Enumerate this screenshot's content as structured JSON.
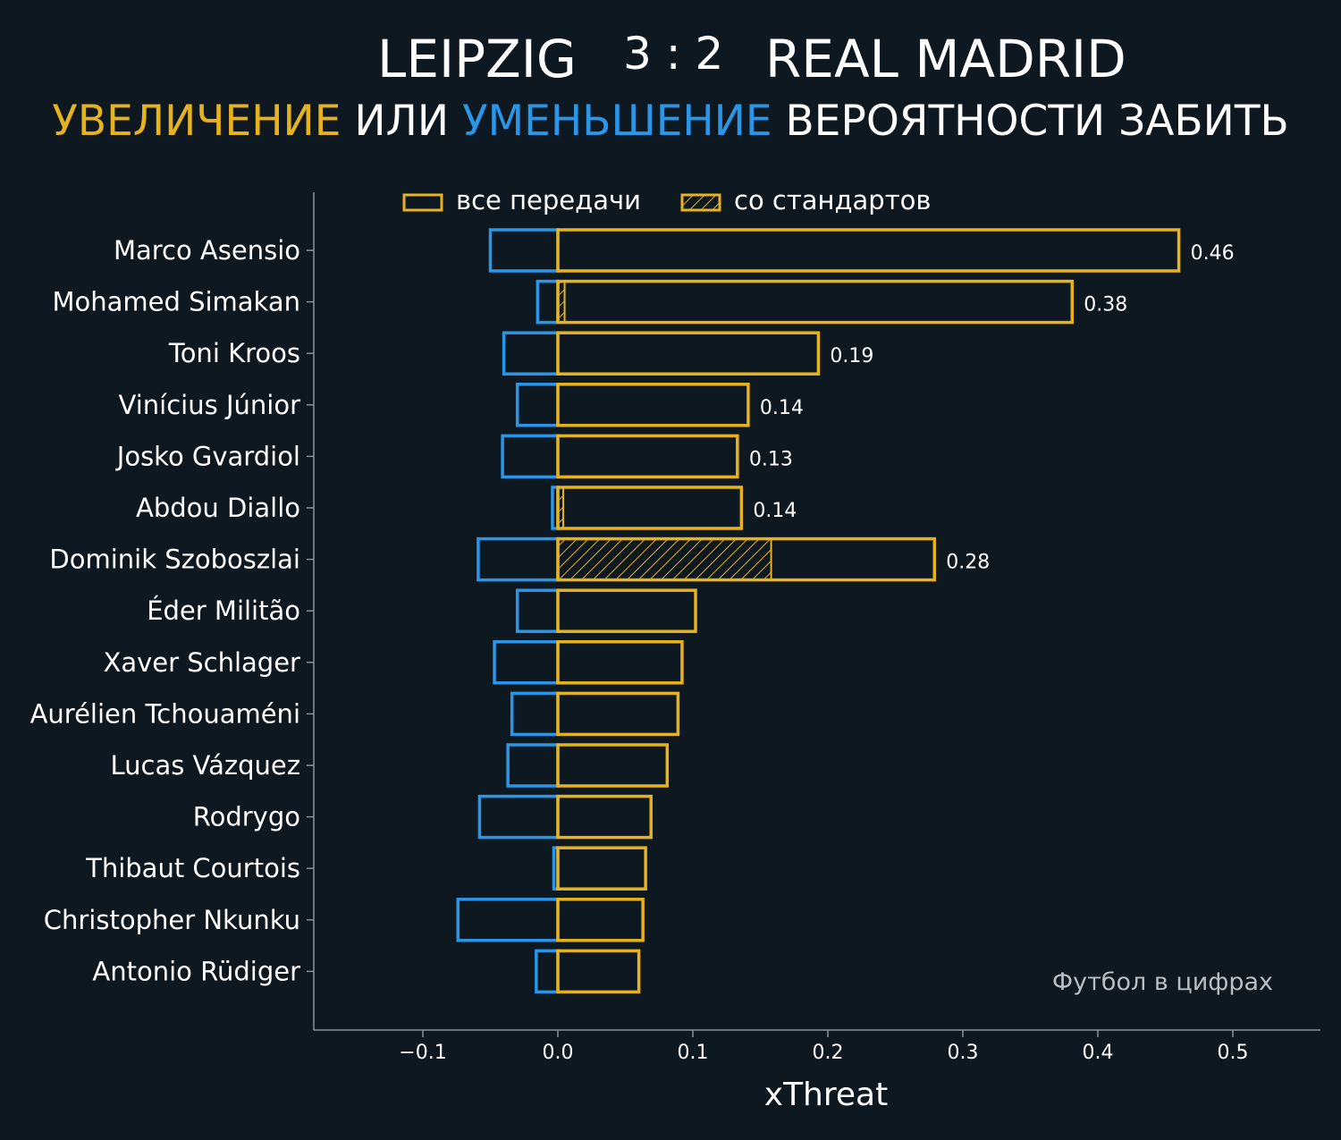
{
  "chart_data": {
    "type": "bar",
    "orientation": "horizontal",
    "title": {
      "home_team": "LEIPZIG",
      "score": "3 : 2",
      "away_team": "REAL MADRID"
    },
    "subtitle": {
      "part1": "УВЕЛИЧЕНИЕ",
      "part2": " ИЛИ ",
      "part3": "УМЕНЬШЕНИЕ",
      "part4": " ВЕРОЯТНОСТИ ЗАБИТЬ"
    },
    "xlabel": "xThreat",
    "xlim": [
      -0.18,
      0.565
    ],
    "xticks": [
      -0.1,
      0.0,
      0.1,
      0.2,
      0.3,
      0.4,
      0.5
    ],
    "xtick_labels": [
      "−0.1",
      "0.0",
      "0.1",
      "0.2",
      "0.3",
      "0.4",
      "0.5"
    ],
    "legend": {
      "position": "top",
      "all_passes": "все передачи",
      "set_pieces": "со стандартов"
    },
    "watermark": "Футбол в цифрах",
    "colors": {
      "positive": "#e6b31e",
      "negative": "#2a96e8",
      "background": "#0e1820",
      "axis": "#8a9298"
    },
    "players": [
      {
        "name": "Marco Asensio",
        "positive": 0.46,
        "negative": -0.05,
        "set_piece": 0.0,
        "label": "0.46"
      },
      {
        "name": "Mohamed Simakan",
        "positive": 0.381,
        "negative": -0.015,
        "set_piece": 0.005,
        "label": "0.38"
      },
      {
        "name": "Toni Kroos",
        "positive": 0.193,
        "negative": -0.04,
        "set_piece": 0.0,
        "label": "0.19"
      },
      {
        "name": "Vinícius Júnior",
        "positive": 0.141,
        "negative": -0.03,
        "set_piece": 0.0,
        "label": "0.14"
      },
      {
        "name": "Josko Gvardiol",
        "positive": 0.133,
        "negative": -0.041,
        "set_piece": 0.0,
        "label": "0.13"
      },
      {
        "name": "Abdou Diallo",
        "positive": 0.136,
        "negative": -0.004,
        "set_piece": 0.004,
        "label": "0.14"
      },
      {
        "name": "Dominik Szoboszlai",
        "positive": 0.279,
        "negative": -0.059,
        "set_piece": 0.158,
        "label": "0.28"
      },
      {
        "name": "Éder Militão",
        "positive": 0.102,
        "negative": -0.03,
        "set_piece": 0.0,
        "label": ""
      },
      {
        "name": "Xaver Schlager",
        "positive": 0.092,
        "negative": -0.047,
        "set_piece": 0.0,
        "label": ""
      },
      {
        "name": "Aurélien Tchouaméni",
        "positive": 0.089,
        "negative": -0.034,
        "set_piece": 0.0,
        "label": ""
      },
      {
        "name": "Lucas Vázquez",
        "positive": 0.081,
        "negative": -0.037,
        "set_piece": 0.0,
        "label": ""
      },
      {
        "name": "Rodrygo",
        "positive": 0.069,
        "negative": -0.058,
        "set_piece": 0.0,
        "label": ""
      },
      {
        "name": "Thibaut Courtois",
        "positive": 0.065,
        "negative": -0.003,
        "set_piece": 0.0,
        "label": ""
      },
      {
        "name": "Christopher Nkunku",
        "positive": 0.063,
        "negative": -0.074,
        "set_piece": 0.0,
        "label": ""
      },
      {
        "name": "Antonio Rüdiger",
        "positive": 0.06,
        "negative": -0.016,
        "set_piece": 0.0,
        "label": ""
      }
    ]
  }
}
